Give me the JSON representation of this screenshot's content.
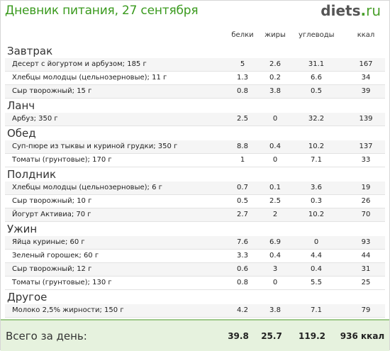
{
  "header": {
    "title": "Дневник питания, 27 сентября",
    "logo_name": "diets",
    "logo_dot": ".",
    "logo_tld": "ru"
  },
  "columns": {
    "protein": "белки",
    "fat": "жиры",
    "carbs": "углеводы",
    "kcal": "ккал"
  },
  "sections": [
    {
      "name": "Завтрак",
      "items": [
        {
          "name": "Десерт с йогуртом и арбузом; 185 г",
          "protein": "5",
          "fat": "2.6",
          "carbs": "31.1",
          "kcal": "167"
        },
        {
          "name": "Хлебцы молодцы (цельнозерновые); 11 г",
          "protein": "1.3",
          "fat": "0.2",
          "carbs": "6.6",
          "kcal": "34"
        },
        {
          "name": "Сыр творожный; 15 г",
          "protein": "0.8",
          "fat": "3.8",
          "carbs": "0.5",
          "kcal": "39"
        }
      ]
    },
    {
      "name": "Ланч",
      "items": [
        {
          "name": "Арбуз; 350 г",
          "protein": "2.5",
          "fat": "0",
          "carbs": "32.2",
          "kcal": "139"
        }
      ]
    },
    {
      "name": "Обед",
      "items": [
        {
          "name": "Суп-пюре из тыквы и куриной грудки; 350 г",
          "protein": "8.8",
          "fat": "0.4",
          "carbs": "10.2",
          "kcal": "137"
        },
        {
          "name": "Томаты (грунтовые); 170 г",
          "protein": "1",
          "fat": "0",
          "carbs": "7.1",
          "kcal": "33"
        }
      ]
    },
    {
      "name": "Полдник",
      "items": [
        {
          "name": "Хлебцы молодцы (цельнозерновые); 6 г",
          "protein": "0.7",
          "fat": "0.1",
          "carbs": "3.6",
          "kcal": "19"
        },
        {
          "name": "Сыр творожный; 10 г",
          "protein": "0.5",
          "fat": "2.5",
          "carbs": "0.3",
          "kcal": "26"
        },
        {
          "name": "Йогурт Активиа; 70 г",
          "protein": "2.7",
          "fat": "2",
          "carbs": "10.2",
          "kcal": "70"
        }
      ]
    },
    {
      "name": "Ужин",
      "items": [
        {
          "name": "Яйца куриные; 60 г",
          "protein": "7.6",
          "fat": "6.9",
          "carbs": "0",
          "kcal": "93"
        },
        {
          "name": "Зеленый горошек; 60 г",
          "protein": "3.3",
          "fat": "0.4",
          "carbs": "4.4",
          "kcal": "44"
        },
        {
          "name": "Сыр творожный; 12 г",
          "protein": "0.6",
          "fat": "3",
          "carbs": "0.4",
          "kcal": "31"
        },
        {
          "name": "Томаты (грунтовые); 130 г",
          "protein": "0.8",
          "fat": "0",
          "carbs": "5.5",
          "kcal": "25"
        }
      ]
    },
    {
      "name": "Другое",
      "items": [
        {
          "name": "Молоко 2,5% жирности; 150 г",
          "protein": "4.2",
          "fat": "3.8",
          "carbs": "7.1",
          "kcal": "79"
        }
      ]
    }
  ],
  "totals": {
    "label": "Всего за день:",
    "protein": "39.8",
    "fat": "25.7",
    "carbs": "119.2",
    "kcal": "936 ккал"
  },
  "colors": {
    "title": "#3a9a1e",
    "footer_bg": "#e6f2de",
    "accent": "#4aa02c"
  }
}
